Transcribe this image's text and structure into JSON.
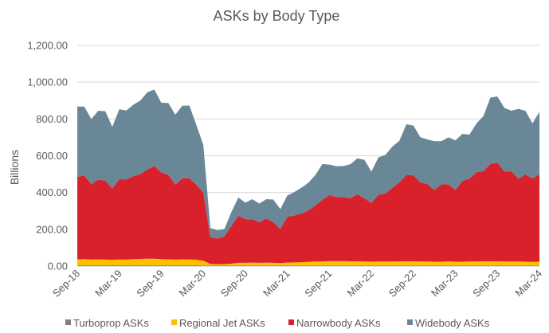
{
  "chart_data": {
    "type": "area",
    "stacked": true,
    "title": "ASKs by Body Type",
    "ylabel": "Billions",
    "xlabel": "",
    "ylim": [
      0,
      1200
    ],
    "yticks": [
      "0.00",
      "200.00",
      "400.00",
      "600.00",
      "800.00",
      "1,000.00",
      "1,200.00"
    ],
    "ytick_values": [
      0,
      200,
      400,
      600,
      800,
      1000,
      1200
    ],
    "grid": true,
    "legend_position": "bottom",
    "x": [
      "Sep-18",
      "Oct-18",
      "Nov-18",
      "Dec-18",
      "Jan-19",
      "Feb-19",
      "Mar-19",
      "Apr-19",
      "May-19",
      "Jun-19",
      "Jul-19",
      "Aug-19",
      "Sep-19",
      "Oct-19",
      "Nov-19",
      "Dec-19",
      "Jan-20",
      "Feb-20",
      "Mar-20",
      "Apr-20",
      "May-20",
      "Jun-20",
      "Jul-20",
      "Aug-20",
      "Sep-20",
      "Oct-20",
      "Nov-20",
      "Dec-20",
      "Jan-21",
      "Feb-21",
      "Mar-21",
      "Apr-21",
      "May-21",
      "Jun-21",
      "Jul-21",
      "Aug-21",
      "Sep-21",
      "Oct-21",
      "Nov-21",
      "Dec-21",
      "Jan-22",
      "Feb-22",
      "Mar-22",
      "Apr-22",
      "May-22",
      "Jun-22",
      "Jul-22",
      "Aug-22",
      "Sep-22",
      "Oct-22",
      "Nov-22",
      "Dec-22",
      "Jan-23",
      "Feb-23",
      "Mar-23",
      "Apr-23",
      "May-23",
      "Jun-23",
      "Jul-23",
      "Aug-23",
      "Sep-23",
      "Oct-23",
      "Nov-23",
      "Dec-23",
      "Jan-24",
      "Feb-24",
      "Mar-24"
    ],
    "xtick_labels": [
      "Sep-18",
      "Mar-19",
      "Sep-19",
      "Mar-20",
      "Sep-20",
      "Mar-21",
      "Sep-21",
      "Mar-22",
      "Sep-22",
      "Mar-23",
      "Sep-23",
      "Mar-24"
    ],
    "series": [
      {
        "name": "Turboprop ASKs",
        "color": "#7f7f7f",
        "values": [
          4,
          4,
          4,
          4,
          4,
          4,
          4,
          4,
          4,
          4,
          4,
          4,
          4,
          4,
          4,
          4,
          4,
          4,
          3,
          2,
          2,
          2,
          2,
          3,
          3,
          3,
          3,
          3,
          3,
          3,
          3,
          3,
          3,
          3,
          3,
          3,
          3,
          3,
          3,
          3,
          3,
          3,
          3,
          3,
          3,
          3,
          3,
          3,
          3,
          3,
          3,
          3,
          3,
          3,
          3,
          3,
          3,
          3,
          3,
          3,
          3,
          3,
          3,
          3,
          3,
          3,
          3
        ]
      },
      {
        "name": "Regional Jet ASKs",
        "color": "#ffc000",
        "values": [
          33,
          34,
          31,
          33,
          31,
          30,
          32,
          31,
          34,
          35,
          36,
          36,
          34,
          33,
          31,
          33,
          32,
          31,
          26,
          10,
          8,
          9,
          11,
          15,
          15,
          16,
          15,
          16,
          15,
          14,
          16,
          17,
          18,
          20,
          22,
          22,
          24,
          24,
          24,
          23,
          23,
          22,
          21,
          22,
          22,
          22,
          23,
          23,
          23,
          22,
          22,
          21,
          21,
          22,
          21,
          21,
          22,
          22,
          23,
          23,
          23,
          22,
          22,
          22,
          21,
          20,
          21
        ]
      },
      {
        "name": "Narrowbody ASKs",
        "color": "#d9212b",
        "values": [
          448,
          454,
          410,
          433,
          430,
          388,
          437,
          436,
          451,
          461,
          485,
          505,
          470,
          460,
          408,
          440,
          442,
          408,
          370,
          145,
          140,
          150,
          205,
          255,
          237,
          235,
          220,
          240,
          220,
          185,
          250,
          255,
          265,
          280,
          305,
          335,
          360,
          348,
          347,
          343,
          365,
          343,
          320,
          363,
          370,
          400,
          430,
          470,
          468,
          430,
          422,
          390,
          420,
          420,
          390,
          440,
          450,
          485,
          490,
          530,
          536,
          490,
          490,
          450,
          475,
          453,
          475
        ]
      },
      {
        "name": "Widebody ASKs",
        "color": "#6a8797",
        "values": [
          383,
          375,
          355,
          375,
          377,
          335,
          380,
          375,
          388,
          400,
          420,
          415,
          380,
          390,
          380,
          395,
          395,
          325,
          260,
          50,
          45,
          40,
          75,
          100,
          90,
          110,
          102,
          105,
          124,
          108,
          115,
          128,
          140,
          150,
          165,
          195,
          165,
          168,
          170,
          185,
          195,
          210,
          170,
          203,
          210,
          225,
          226,
          275,
          270,
          245,
          242,
          265,
          235,
          255,
          270,
          255,
          240,
          265,
          300,
          360,
          360,
          345,
          330,
          380,
          345,
          300,
          340
        ]
      }
    ]
  }
}
